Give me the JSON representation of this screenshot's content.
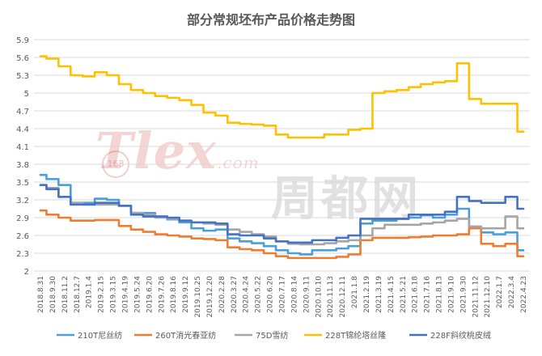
{
  "chart_data": {
    "type": "line",
    "title": "部分常规坯布产品价格走势图",
    "ylim": [
      2,
      5.9
    ],
    "yticks": [
      "2",
      "2.3",
      "2.6",
      "2.9",
      "3.2",
      "3.5",
      "3.8",
      "4.1",
      "4.4",
      "4.7",
      "5",
      "5.3",
      "5.6",
      "5.9"
    ],
    "xtick_labels": [
      "2018.8.31",
      "2018.9.30",
      "2018.11.2",
      "2018.12.7",
      "2019.1.4",
      "2019.2.15",
      "2019.3.15",
      "2019.4.19",
      "2019.5.24",
      "2019.6.20",
      "2019.7.26",
      "2019.8.16",
      "2019.9.12",
      "2019.10.25",
      "2019.12.20",
      "2020.2.28",
      "2020.3.27",
      "2020.4.24",
      "2020.5.22",
      "2020.6.20",
      "2020.7.17",
      "2020.8.14",
      "2020.9.11",
      "2020.10.10",
      "2020.11.13",
      "2020.12.11",
      "2021.1.8",
      "2021.2.19",
      "2021.3.19",
      "2021.4.15",
      "2021.5.21",
      "2021.6.18",
      "2021.7.16",
      "2021.8.13",
      "2021.9.10",
      "2021.9.30",
      "2021.11.12",
      "2021.12.10",
      "2022.1.7",
      "2022.3.4",
      "2022.4.23"
    ],
    "grid": "horizontal",
    "legend_position": "bottom",
    "series": [
      {
        "name": "210T尼丝纺",
        "color": "#4a9fd8",
        "values": [
          3.62,
          3.55,
          3.45,
          3.15,
          3.15,
          3.22,
          3.2,
          3.1,
          2.98,
          2.98,
          2.92,
          2.87,
          2.82,
          2.72,
          2.68,
          2.7,
          2.55,
          2.5,
          2.47,
          2.42,
          2.35,
          2.3,
          2.28,
          2.35,
          2.35,
          2.38,
          2.42,
          2.8,
          2.85,
          2.85,
          2.88,
          2.9,
          2.94,
          2.9,
          2.95,
          3.05,
          2.75,
          2.65,
          2.62,
          2.65,
          2.35
        ]
      },
      {
        "name": "260T消光春亚纺",
        "color": "#ed7d31",
        "values": [
          3.02,
          2.95,
          2.9,
          2.85,
          2.85,
          2.86,
          2.86,
          2.76,
          2.7,
          2.66,
          2.62,
          2.6,
          2.58,
          2.55,
          2.54,
          2.52,
          2.4,
          2.37,
          2.35,
          2.3,
          2.25,
          2.22,
          2.22,
          2.22,
          2.22,
          2.24,
          2.28,
          2.52,
          2.56,
          2.56,
          2.56,
          2.57,
          2.58,
          2.6,
          2.6,
          2.62,
          2.72,
          2.46,
          2.42,
          2.46,
          2.25
        ]
      },
      {
        "name": "75D雪纺",
        "color": "#a5a5a5",
        "values": [
          3.45,
          3.4,
          3.25,
          3.15,
          3.12,
          3.12,
          3.12,
          3.1,
          2.98,
          2.95,
          2.9,
          2.88,
          2.85,
          2.82,
          2.8,
          2.78,
          2.7,
          2.66,
          2.62,
          2.58,
          2.5,
          2.46,
          2.45,
          2.45,
          2.47,
          2.5,
          2.52,
          2.6,
          2.72,
          2.78,
          2.78,
          2.78,
          2.8,
          2.82,
          2.85,
          2.88,
          2.75,
          2.72,
          2.72,
          2.92,
          2.72
        ]
      },
      {
        "name": "228T锦纶塔丝隆",
        "color": "#ffc000",
        "values": [
          5.62,
          5.58,
          5.45,
          5.3,
          5.28,
          5.35,
          5.3,
          5.15,
          5.05,
          5.0,
          4.95,
          4.92,
          4.88,
          4.8,
          4.67,
          4.62,
          4.5,
          4.48,
          4.47,
          4.45,
          4.3,
          4.25,
          4.25,
          4.25,
          4.3,
          4.3,
          4.38,
          4.4,
          5.0,
          5.03,
          5.05,
          5.1,
          5.15,
          5.18,
          5.2,
          5.5,
          4.9,
          4.82,
          4.82,
          4.82,
          4.35
        ]
      },
      {
        "name": "228F斜纹桃皮绒",
        "color": "#4472c4",
        "values": [
          3.45,
          3.38,
          3.25,
          3.12,
          3.12,
          3.15,
          3.15,
          3.1,
          2.95,
          2.92,
          2.92,
          2.9,
          2.85,
          2.82,
          2.82,
          2.8,
          2.62,
          2.6,
          2.6,
          2.55,
          2.5,
          2.48,
          2.48,
          2.52,
          2.52,
          2.56,
          2.6,
          2.88,
          2.88,
          2.88,
          2.88,
          2.95,
          2.95,
          2.95,
          3.0,
          3.25,
          3.18,
          3.15,
          3.15,
          3.25,
          3.05
        ]
      }
    ]
  },
  "watermark": {
    "tlex_text": "Tlex",
    "tlex_domain": ".com",
    "tlex_badge": "168",
    "zhoudu_text": "周都网"
  }
}
